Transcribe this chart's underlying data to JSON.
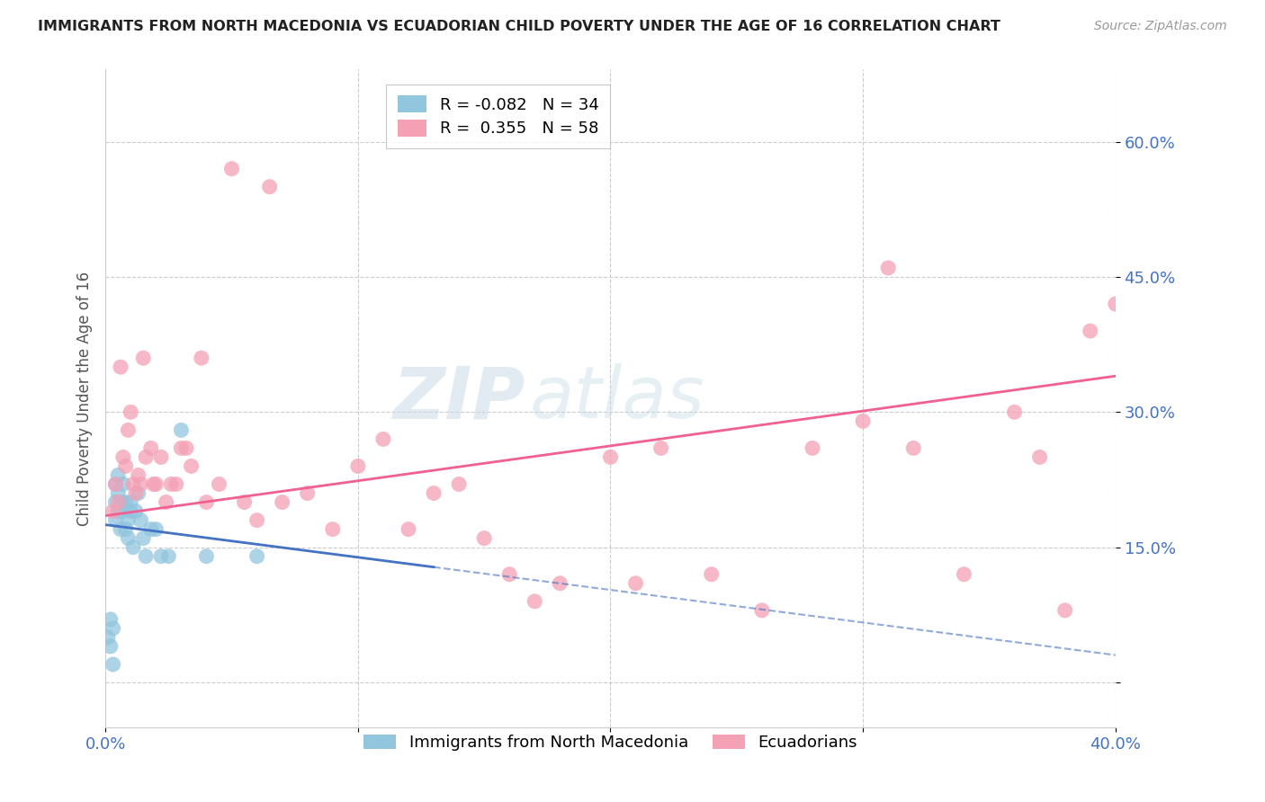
{
  "title": "IMMIGRANTS FROM NORTH MACEDONIA VS ECUADORIAN CHILD POVERTY UNDER THE AGE OF 16 CORRELATION CHART",
  "source": "Source: ZipAtlas.com",
  "ylabel": "Child Poverty Under the Age of 16",
  "y_ticks": [
    0.0,
    0.15,
    0.3,
    0.45,
    0.6
  ],
  "y_tick_labels": [
    "",
    "15.0%",
    "30.0%",
    "45.0%",
    "60.0%"
  ],
  "xlim": [
    0.0,
    0.4
  ],
  "ylim": [
    -0.05,
    0.68
  ],
  "legend_r_blue": "-0.082",
  "legend_n_blue": "34",
  "legend_r_pink": "0.355",
  "legend_n_pink": "58",
  "color_blue": "#92c5de",
  "color_pink": "#f4a0b5",
  "color_blue_line": "#4472c4",
  "color_pink_line": "#f06090",
  "color_axis_labels": "#4472c4",
  "watermark_zip": "ZIP",
  "watermark_atlas": "atlas",
  "blue_points_x": [
    0.001,
    0.002,
    0.002,
    0.003,
    0.003,
    0.004,
    0.004,
    0.004,
    0.005,
    0.005,
    0.005,
    0.006,
    0.006,
    0.007,
    0.007,
    0.008,
    0.008,
    0.009,
    0.009,
    0.01,
    0.01,
    0.011,
    0.012,
    0.013,
    0.014,
    0.015,
    0.016,
    0.018,
    0.02,
    0.022,
    0.025,
    0.03,
    0.04,
    0.06
  ],
  "blue_points_y": [
    0.05,
    0.07,
    0.04,
    0.06,
    0.02,
    0.18,
    0.2,
    0.22,
    0.19,
    0.21,
    0.23,
    0.17,
    0.2,
    0.19,
    0.22,
    0.17,
    0.2,
    0.18,
    0.16,
    0.19,
    0.2,
    0.15,
    0.19,
    0.21,
    0.18,
    0.16,
    0.14,
    0.17,
    0.17,
    0.14,
    0.14,
    0.28,
    0.14,
    0.14
  ],
  "pink_points_x": [
    0.003,
    0.004,
    0.005,
    0.006,
    0.007,
    0.008,
    0.009,
    0.01,
    0.011,
    0.012,
    0.013,
    0.014,
    0.015,
    0.016,
    0.018,
    0.019,
    0.02,
    0.022,
    0.024,
    0.026,
    0.028,
    0.03,
    0.032,
    0.034,
    0.038,
    0.04,
    0.045,
    0.05,
    0.055,
    0.06,
    0.065,
    0.07,
    0.08,
    0.09,
    0.1,
    0.11,
    0.12,
    0.13,
    0.14,
    0.15,
    0.16,
    0.17,
    0.18,
    0.2,
    0.21,
    0.22,
    0.24,
    0.26,
    0.28,
    0.3,
    0.31,
    0.32,
    0.34,
    0.36,
    0.37,
    0.38,
    0.39,
    0.4
  ],
  "pink_points_y": [
    0.19,
    0.22,
    0.2,
    0.35,
    0.25,
    0.24,
    0.28,
    0.3,
    0.22,
    0.21,
    0.23,
    0.22,
    0.36,
    0.25,
    0.26,
    0.22,
    0.22,
    0.25,
    0.2,
    0.22,
    0.22,
    0.26,
    0.26,
    0.24,
    0.36,
    0.2,
    0.22,
    0.57,
    0.2,
    0.18,
    0.55,
    0.2,
    0.21,
    0.17,
    0.24,
    0.27,
    0.17,
    0.21,
    0.22,
    0.16,
    0.12,
    0.09,
    0.11,
    0.25,
    0.11,
    0.26,
    0.12,
    0.08,
    0.26,
    0.29,
    0.46,
    0.26,
    0.12,
    0.3,
    0.25,
    0.08,
    0.39,
    0.42
  ],
  "blue_line_x": [
    0.0,
    0.13
  ],
  "blue_line_y": [
    0.175,
    0.128
  ],
  "pink_line_x": [
    0.0,
    0.4
  ],
  "pink_line_y": [
    0.185,
    0.34
  ]
}
